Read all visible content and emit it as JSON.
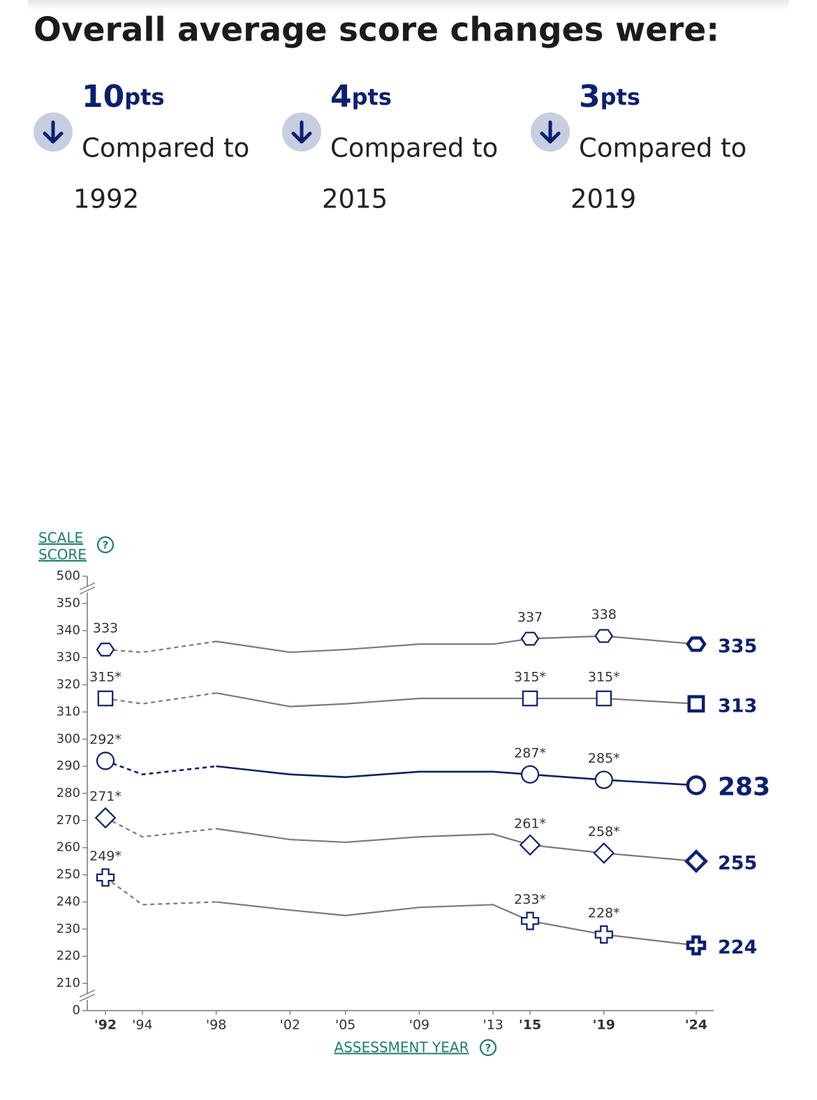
{
  "header": {
    "title": "Overall average score changes were:"
  },
  "changes": [
    {
      "points": 10,
      "unit": "pts",
      "text": "Compared to",
      "year": "1992"
    },
    {
      "points": 4,
      "unit": "pts",
      "text": "Compared to",
      "year": "2015"
    },
    {
      "points": 3,
      "unit": "pts",
      "text": "Compared to",
      "year": "2019"
    }
  ],
  "chart_data": {
    "type": "line",
    "ylabel": "SCALE SCORE",
    "xlabel": "ASSESSMENT YEAR",
    "x": [
      1992,
      1994,
      1998,
      2002,
      2005,
      2009,
      2013,
      2015,
      2019,
      2024
    ],
    "xlim": [
      1992,
      2024
    ],
    "xticks": [
      {
        "value": 1992,
        "label": "'92"
      },
      {
        "value": 1994,
        "label": "'94"
      },
      {
        "value": 1998,
        "label": "'98"
      },
      {
        "value": 2002,
        "label": "'02"
      },
      {
        "value": 2005,
        "label": "'05"
      },
      {
        "value": 2009,
        "label": "'09"
      },
      {
        "value": 2013,
        "label": "'13"
      },
      {
        "value": 2015,
        "label": "'15"
      },
      {
        "value": 2019,
        "label": "'19"
      },
      {
        "value": 2024,
        "label": "'24"
      }
    ],
    "ylim": [
      0,
      500
    ],
    "ybreaks": [
      [
        0,
        210
      ],
      [
        350,
        500
      ]
    ],
    "yticks": [
      0,
      210,
      220,
      230,
      240,
      250,
      260,
      270,
      280,
      290,
      300,
      310,
      320,
      330,
      340,
      350,
      500
    ],
    "dashed_until": 1998,
    "marker_color": "#0b1f72",
    "series": [
      {
        "color": "#7a7a7a",
        "marker": "hexagon",
        "values": [
          333,
          332,
          336,
          332,
          333,
          335,
          335,
          337,
          338,
          335
        ],
        "value_labels": [
          "333",
          null,
          null,
          null,
          null,
          null,
          null,
          "337",
          "338",
          "335"
        ]
      },
      {
        "color": "#7a7a7a",
        "marker": "square",
        "values": [
          315,
          313,
          317,
          312,
          313,
          315,
          315,
          315,
          315,
          313
        ],
        "value_labels": [
          "315*",
          null,
          null,
          null,
          null,
          null,
          null,
          "315*",
          "315*",
          "313"
        ]
      },
      {
        "color": "#0b1f72",
        "marker": "circle",
        "emphasis": true,
        "values": [
          292,
          287,
          290,
          287,
          286,
          288,
          288,
          287,
          285,
          283
        ],
        "value_labels": [
          "292*",
          null,
          null,
          null,
          null,
          null,
          null,
          "287*",
          "285*",
          "283"
        ]
      },
      {
        "color": "#7a7a7a",
        "marker": "diamond",
        "values": [
          271,
          264,
          267,
          263,
          262,
          264,
          265,
          261,
          258,
          255
        ],
        "value_labels": [
          "271*",
          null,
          null,
          null,
          null,
          null,
          null,
          "261*",
          "258*",
          "255"
        ]
      },
      {
        "color": "#7a7a7a",
        "marker": "cross",
        "values": [
          249,
          239,
          240,
          237,
          235,
          238,
          239,
          233,
          228,
          224
        ],
        "value_labels": [
          "249*",
          null,
          null,
          null,
          null,
          null,
          null,
          "233*",
          "228*",
          "224"
        ]
      }
    ]
  }
}
